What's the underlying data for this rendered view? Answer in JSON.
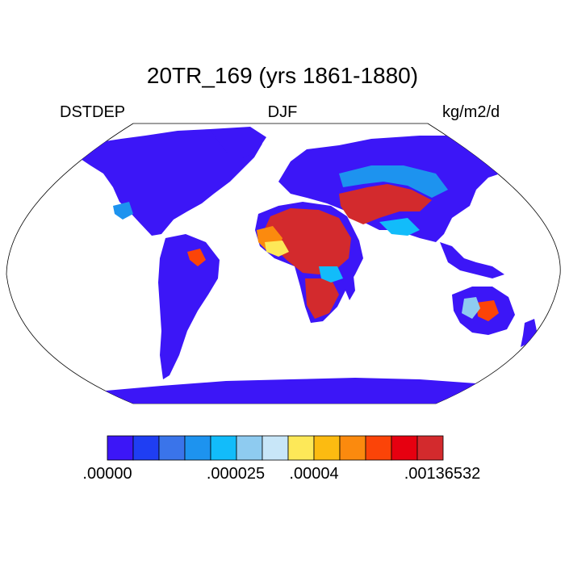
{
  "title": "20TR_169 (yrs 1861-1880)",
  "left_label": "DSTDEP",
  "center_label": "DJF",
  "right_label": "kg/m2/d",
  "colorbar": {
    "colors": [
      "#3c16f7",
      "#1f3ef3",
      "#3a74ea",
      "#1d93ef",
      "#12bcfa",
      "#8ecbf0",
      "#c8e6f8",
      "#fde858",
      "#fcbb11",
      "#fb8a0e",
      "#fb4408",
      "#e60010",
      "#d32a2d"
    ],
    "tick_labels": [
      ".00000",
      ".000025",
      ".00004",
      ".00136532"
    ]
  },
  "map": {
    "projection": "Robinson",
    "land_background_color": "#3c16f7",
    "ocean_color": "#ffffff"
  }
}
